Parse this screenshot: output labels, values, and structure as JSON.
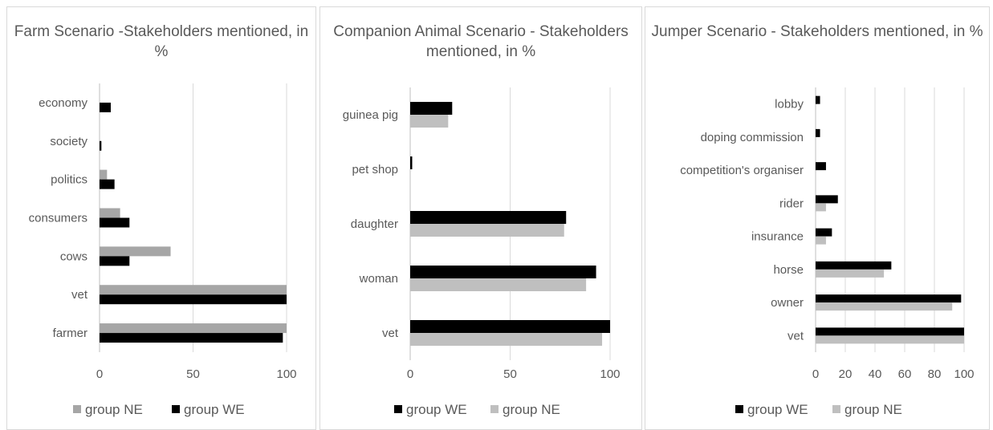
{
  "chart_data": [
    {
      "type": "bar",
      "orientation": "horizontal",
      "title": "Farm Scenario -Stakeholders mentioned, in %",
      "categories": [
        "economy",
        "society",
        "politics",
        "consumers",
        "cows",
        "vet",
        "farmer"
      ],
      "series": [
        {
          "name": "group NE",
          "color": "#a6a6a6",
          "values": [
            0,
            0,
            4,
            11,
            38,
            100,
            100
          ]
        },
        {
          "name": "group WE",
          "color": "#000000",
          "values": [
            6,
            1,
            8,
            16,
            16,
            100,
            98
          ]
        }
      ],
      "xlim": [
        0,
        100
      ],
      "xticks": [
        "0",
        "50",
        "100"
      ],
      "grid": true,
      "legend_order": [
        "group NE",
        "group WE"
      ],
      "legend_position": "bottom"
    },
    {
      "type": "bar",
      "orientation": "horizontal",
      "title": "Companion Animal Scenario - Stakeholders mentioned, in %",
      "categories": [
        "guinea pig",
        "pet shop",
        "daughter",
        "woman",
        "vet"
      ],
      "series": [
        {
          "name": "group WE",
          "color": "#000000",
          "values": [
            21,
            1,
            78,
            93,
            100
          ]
        },
        {
          "name": "group NE",
          "color": "#bfbfbf",
          "values": [
            19,
            0,
            77,
            88,
            96
          ]
        }
      ],
      "xlim": [
        0,
        100
      ],
      "xticks": [
        "0",
        "50",
        "100"
      ],
      "grid": true,
      "legend_order": [
        "group WE",
        "group NE"
      ],
      "legend_position": "bottom"
    },
    {
      "type": "bar",
      "orientation": "horizontal",
      "title": "Jumper Scenario - Stakeholders mentioned, in %",
      "categories": [
        "lobby",
        "doping commission",
        "competition's organiser",
        "rider",
        "insurance",
        "horse",
        "owner",
        "vet"
      ],
      "series": [
        {
          "name": "group WE",
          "color": "#000000",
          "values": [
            3,
            3,
            7,
            15,
            11,
            51,
            98,
            100
          ]
        },
        {
          "name": "group NE",
          "color": "#bfbfbf",
          "values": [
            0,
            0,
            0,
            7,
            7,
            46,
            92,
            100
          ]
        }
      ],
      "xlim": [
        0,
        100
      ],
      "xticks": [
        "0",
        "20",
        "40",
        "60",
        "80",
        "100"
      ],
      "grid": true,
      "legend_order": [
        "group WE",
        "group NE"
      ],
      "legend_position": "bottom"
    }
  ]
}
